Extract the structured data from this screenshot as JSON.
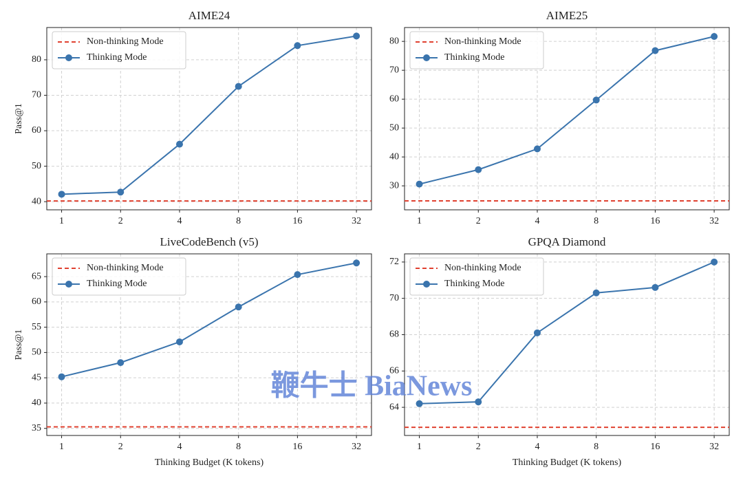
{
  "chart_data": [
    {
      "type": "line",
      "title": "AIME24",
      "ylabel": "Pass@1",
      "xscale": "log2",
      "grid": true,
      "legend": "upper left",
      "x": [
        1,
        2,
        4,
        8,
        16,
        32
      ],
      "xlim": [
        0.84,
        38.2
      ],
      "xticks": [
        1,
        2,
        4,
        8,
        16,
        32
      ],
      "ylim": [
        37.7,
        89.1
      ],
      "yticks": [
        40,
        50,
        60,
        70,
        80
      ],
      "series": [
        {
          "name": "Non-thinking Mode",
          "color": "#e0402f",
          "style": "dashed",
          "value": 40.2
        },
        {
          "name": "Thinking Mode",
          "color": "#3a74ad",
          "values": [
            42.1,
            42.7,
            56.2,
            72.5,
            84.0,
            86.7
          ]
        }
      ]
    },
    {
      "type": "line",
      "title": "AIME25",
      "xscale": "log2",
      "grid": true,
      "legend": "upper left",
      "x": [
        1,
        2,
        4,
        8,
        16,
        32
      ],
      "xlim": [
        0.84,
        38.2
      ],
      "xticks": [
        1,
        2,
        4,
        8,
        16,
        32
      ],
      "ylim": [
        21.7,
        84.8
      ],
      "yticks": [
        30,
        40,
        50,
        60,
        70,
        80
      ],
      "series": [
        {
          "name": "Non-thinking Mode",
          "color": "#e0402f",
          "style": "dashed",
          "value": 24.8
        },
        {
          "name": "Thinking Mode",
          "color": "#3a74ad",
          "values": [
            30.6,
            35.6,
            42.8,
            59.7,
            76.8,
            81.7
          ]
        }
      ]
    },
    {
      "type": "line",
      "title": "LiveCodeBench (v5)",
      "ylabel": "Pass@1",
      "xlabel": "Thinking Budget (K tokens)",
      "xscale": "log2",
      "grid": true,
      "legend": "upper left",
      "x": [
        1,
        2,
        4,
        8,
        16,
        32
      ],
      "xlim": [
        0.84,
        38.2
      ],
      "xticks": [
        1,
        2,
        4,
        8,
        16,
        32
      ],
      "ylim": [
        33.6,
        69.5
      ],
      "yticks": [
        35,
        40,
        45,
        50,
        55,
        60,
        65
      ],
      "series": [
        {
          "name": "Non-thinking Mode",
          "color": "#e0402f",
          "style": "dashed",
          "value": 35.3
        },
        {
          "name": "Thinking Mode",
          "color": "#3a74ad",
          "values": [
            45.2,
            48.0,
            52.1,
            59.0,
            65.4,
            67.7
          ]
        }
      ]
    },
    {
      "type": "line",
      "title": "GPQA Diamond",
      "xlabel": "Thinking Budget (K tokens)",
      "xscale": "log2",
      "grid": true,
      "legend": "upper left",
      "x": [
        1,
        2,
        4,
        8,
        16,
        32
      ],
      "xlim": [
        0.84,
        38.2
      ],
      "xticks": [
        1,
        2,
        4,
        8,
        16,
        32
      ],
      "ylim": [
        62.45,
        72.45
      ],
      "yticks": [
        64,
        66,
        68,
        70,
        72
      ],
      "series": [
        {
          "name": "Non-thinking Mode",
          "color": "#e0402f",
          "style": "dashed",
          "value": 62.9
        },
        {
          "name": "Thinking Mode",
          "color": "#3a74ad",
          "values": [
            64.2,
            64.3,
            68.1,
            70.3,
            70.6,
            72.0
          ]
        }
      ]
    }
  ],
  "watermark": "鞭牛士 BiaNews"
}
